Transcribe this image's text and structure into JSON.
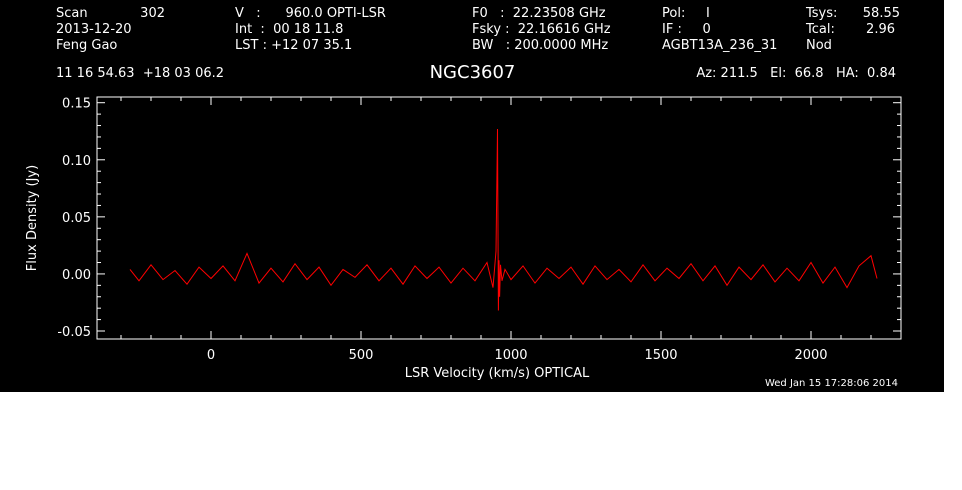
{
  "header": {
    "row1": {
      "scan_label": "Scan",
      "scan_value": "302",
      "velocity": "V   :      960.0 OPTI-LSR",
      "f0": "F0   :  22.23508 GHz",
      "pol": "Pol:     I",
      "tsys_label": "Tsys:",
      "tsys_value": "58.55"
    },
    "row2": {
      "date": "2013-12-20",
      "int": "Int  :  00 18 11.8",
      "fsky": "Fsky :  22.16616 GHz",
      "if_label": "IF :     0",
      "tcal_label": "Tcal:",
      "tcal_value": "2.96"
    },
    "row3": {
      "observer": "Feng Gao",
      "lst": "LST : +12 07 35.1",
      "bw": "BW   : 200.0000 MHz",
      "project": "AGBT13A_236_31",
      "proc": "Nod"
    },
    "coords": "11 16 54.63  +18 03 06.2",
    "pointing": "Az: 211.5   El:  66.8   HA:  0.84"
  },
  "source_name": "NGC3607",
  "timestamp": "Wed Jan 15 17:28:06 2014",
  "colors": {
    "background": "#000000",
    "axes": "#ffffff",
    "spectrum": "#ff0000"
  },
  "chart_data": {
    "type": "line",
    "xlabel": "LSR Velocity (km/s) OPTICAL",
    "ylabel": "Flux Density (Jy)",
    "xlim": [
      -380,
      2300
    ],
    "ylim": [
      -0.057,
      0.155
    ],
    "xticks": [
      0,
      500,
      1000,
      1500,
      2000
    ],
    "yticks": [
      -0.05,
      0.0,
      0.05,
      0.1,
      0.15
    ],
    "ytick_labels": [
      "-0.05",
      "0.00",
      "0.05",
      "0.10",
      "0.15"
    ],
    "grid": false,
    "series": [
      {
        "x": [
          -270,
          -240,
          -200,
          -160,
          -120,
          -80,
          -40,
          0,
          40,
          80,
          120,
          160,
          200,
          240,
          280,
          320,
          360,
          400,
          440,
          480,
          520,
          560,
          600,
          640,
          680,
          720,
          760,
          800,
          840,
          880,
          920,
          940,
          950,
          955,
          958,
          960,
          962,
          965,
          970,
          980,
          1000,
          1040,
          1080,
          1120,
          1160,
          1200,
          1240,
          1280,
          1320,
          1360,
          1400,
          1440,
          1480,
          1520,
          1560,
          1600,
          1640,
          1680,
          1720,
          1760,
          1800,
          1840,
          1880,
          1920,
          1960,
          2000,
          2040,
          2080,
          2120,
          2160,
          2200,
          2220
        ],
        "y": [
          0.004,
          -0.006,
          0.008,
          -0.005,
          0.003,
          -0.009,
          0.006,
          -0.004,
          0.007,
          -0.006,
          0.018,
          -0.008,
          0.005,
          -0.007,
          0.009,
          -0.005,
          0.006,
          -0.01,
          0.004,
          -0.003,
          0.008,
          -0.006,
          0.005,
          -0.009,
          0.007,
          -0.004,
          0.006,
          -0.008,
          0.005,
          -0.006,
          0.01,
          -0.012,
          0.02,
          0.127,
          -0.032,
          0.012,
          -0.02,
          0.008,
          -0.006,
          0.004,
          -0.005,
          0.007,
          -0.008,
          0.005,
          -0.004,
          0.006,
          -0.009,
          0.007,
          -0.005,
          0.004,
          -0.007,
          0.008,
          -0.006,
          0.005,
          -0.004,
          0.009,
          -0.006,
          0.007,
          -0.01,
          0.006,
          -0.005,
          0.008,
          -0.007,
          0.005,
          -0.006,
          0.01,
          -0.008,
          0.006,
          -0.012,
          0.007,
          0.016,
          -0.004
        ]
      }
    ]
  }
}
